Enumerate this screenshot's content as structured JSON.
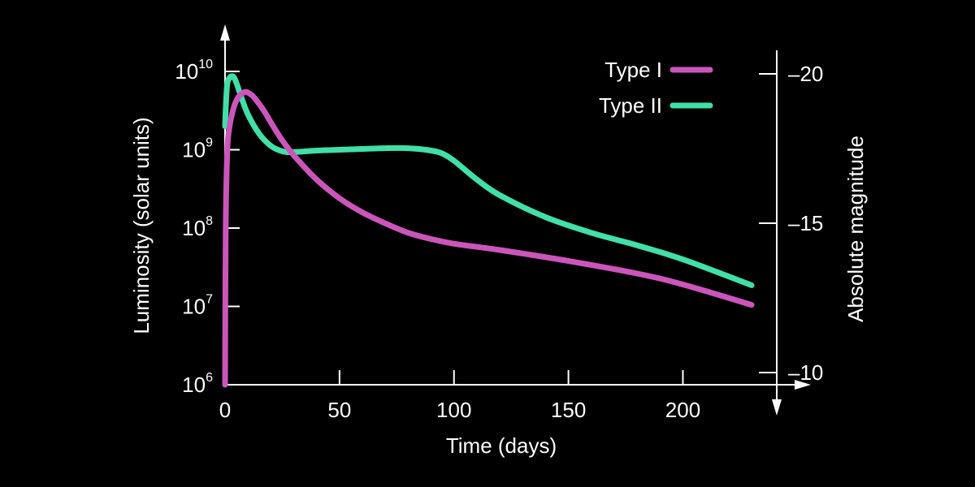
{
  "chart_data": {
    "type": "line",
    "title": "",
    "xlabel": "Time (days)",
    "ylabel": "Luminosity (solar units)",
    "y2label": "Absolute magnitude",
    "y_scale": "log",
    "xlim": [
      0,
      230
    ],
    "ylim_log10": [
      6,
      10
    ],
    "y2lim": [
      -9.7,
      -20
    ],
    "x_ticks": [
      "0",
      "50",
      "100",
      "150",
      "200"
    ],
    "x_tick_values": [
      0,
      50,
      100,
      150,
      200
    ],
    "y_ticks": [
      {
        "base": "10",
        "exp": "6",
        "log10": 6
      },
      {
        "base": "10",
        "exp": "7",
        "log10": 7
      },
      {
        "base": "10",
        "exp": "8",
        "log10": 8
      },
      {
        "base": "10",
        "exp": "9",
        "log10": 9
      },
      {
        "base": "10",
        "exp": "10",
        "log10": 10
      }
    ],
    "y2_ticks": [
      {
        "label": "–20",
        "value": -20
      },
      {
        "label": "–15",
        "value": -15
      },
      {
        "label": "–10",
        "value": -10
      }
    ],
    "legend_position": "top-right",
    "grid": false,
    "series": [
      {
        "name": "Type I",
        "color": "#cc55bb",
        "x": [
          0,
          0.3,
          1,
          2,
          3,
          4,
          5,
          6,
          7,
          8,
          9,
          10,
          12,
          14,
          16,
          18,
          20,
          25,
          30,
          40,
          50,
          60,
          70,
          80,
          90,
          100,
          120,
          150,
          180,
          200,
          230
        ],
        "log10_luminosity": [
          6.0,
          8.0,
          9.0,
          9.3,
          9.45,
          9.56,
          9.63,
          9.68,
          9.71,
          9.73,
          9.74,
          9.73,
          9.69,
          9.62,
          9.54,
          9.45,
          9.35,
          9.12,
          8.93,
          8.62,
          8.38,
          8.2,
          8.06,
          7.94,
          7.86,
          7.8,
          7.72,
          7.58,
          7.42,
          7.28,
          7.02
        ]
      },
      {
        "name": "Type II",
        "color": "#40e0a8",
        "x": [
          0,
          0.5,
          1,
          2,
          3,
          4,
          5,
          7,
          10,
          15,
          20,
          25,
          30,
          40,
          50,
          60,
          70,
          80,
          90,
          95,
          100,
          110,
          120,
          140,
          160,
          180,
          200,
          230
        ],
        "log10_luminosity": [
          9.3,
          9.65,
          9.85,
          9.92,
          9.94,
          9.92,
          9.85,
          9.68,
          9.45,
          9.2,
          9.05,
          8.98,
          8.97,
          8.99,
          9.0,
          9.01,
          9.02,
          9.02,
          8.99,
          8.95,
          8.86,
          8.62,
          8.42,
          8.14,
          7.94,
          7.78,
          7.6,
          7.27
        ]
      }
    ]
  }
}
